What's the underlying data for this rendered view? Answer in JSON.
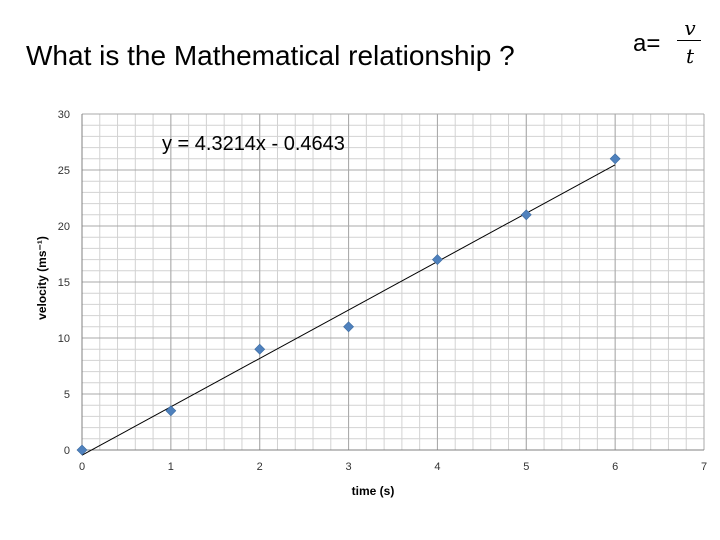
{
  "slide": {
    "question": "What is the Mathematical relationship ?",
    "formula": {
      "lhs": "a=",
      "numerator": "v",
      "denominator": "t"
    }
  },
  "chart_data": {
    "type": "scatter",
    "title": "",
    "xlabel": "time (s)",
    "ylabel": "velocity (ms⁻¹)",
    "xlim": [
      0,
      7
    ],
    "ylim": [
      0,
      30
    ],
    "x_ticks": [
      0,
      1,
      2,
      3,
      4,
      5,
      6,
      7
    ],
    "y_ticks": [
      0,
      5,
      10,
      15,
      20,
      25,
      30
    ],
    "grid": true,
    "legend": "none",
    "series": [
      {
        "x": [
          0,
          1,
          2,
          3,
          4,
          5,
          6
        ],
        "y": [
          0,
          3.5,
          9,
          11,
          17,
          21,
          26
        ],
        "color": "#4F81BD",
        "marker": "diamond"
      }
    ],
    "trendline": {
      "type": "linear",
      "slope": 4.3214,
      "intercept": -0.4643,
      "color": "#000000"
    },
    "annotations": [
      "y = 4.3214x - 0.4643"
    ]
  }
}
